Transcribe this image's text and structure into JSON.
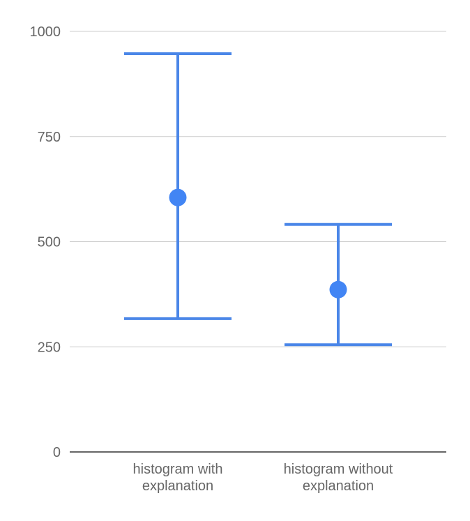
{
  "chart_data": {
    "type": "error-bar",
    "title": "",
    "xlabel": "",
    "ylabel": "",
    "ylim": [
      0,
      1000
    ],
    "yticks": [
      0,
      250,
      500,
      750,
      1000
    ],
    "grid": true,
    "legend": "none",
    "categories": [
      {
        "line1": "histogram with",
        "line2": "explanation"
      },
      {
        "line1": "histogram without",
        "line2": "explanation"
      }
    ],
    "points": [
      {
        "low": 317,
        "mid": 605,
        "high": 947
      },
      {
        "low": 255,
        "mid": 386,
        "high": 541
      }
    ],
    "colors": {
      "series": "#4a86e8",
      "point": "#4285f4",
      "grid": "#cccccc",
      "axis": "#333333",
      "tick_label": "#666666"
    }
  }
}
